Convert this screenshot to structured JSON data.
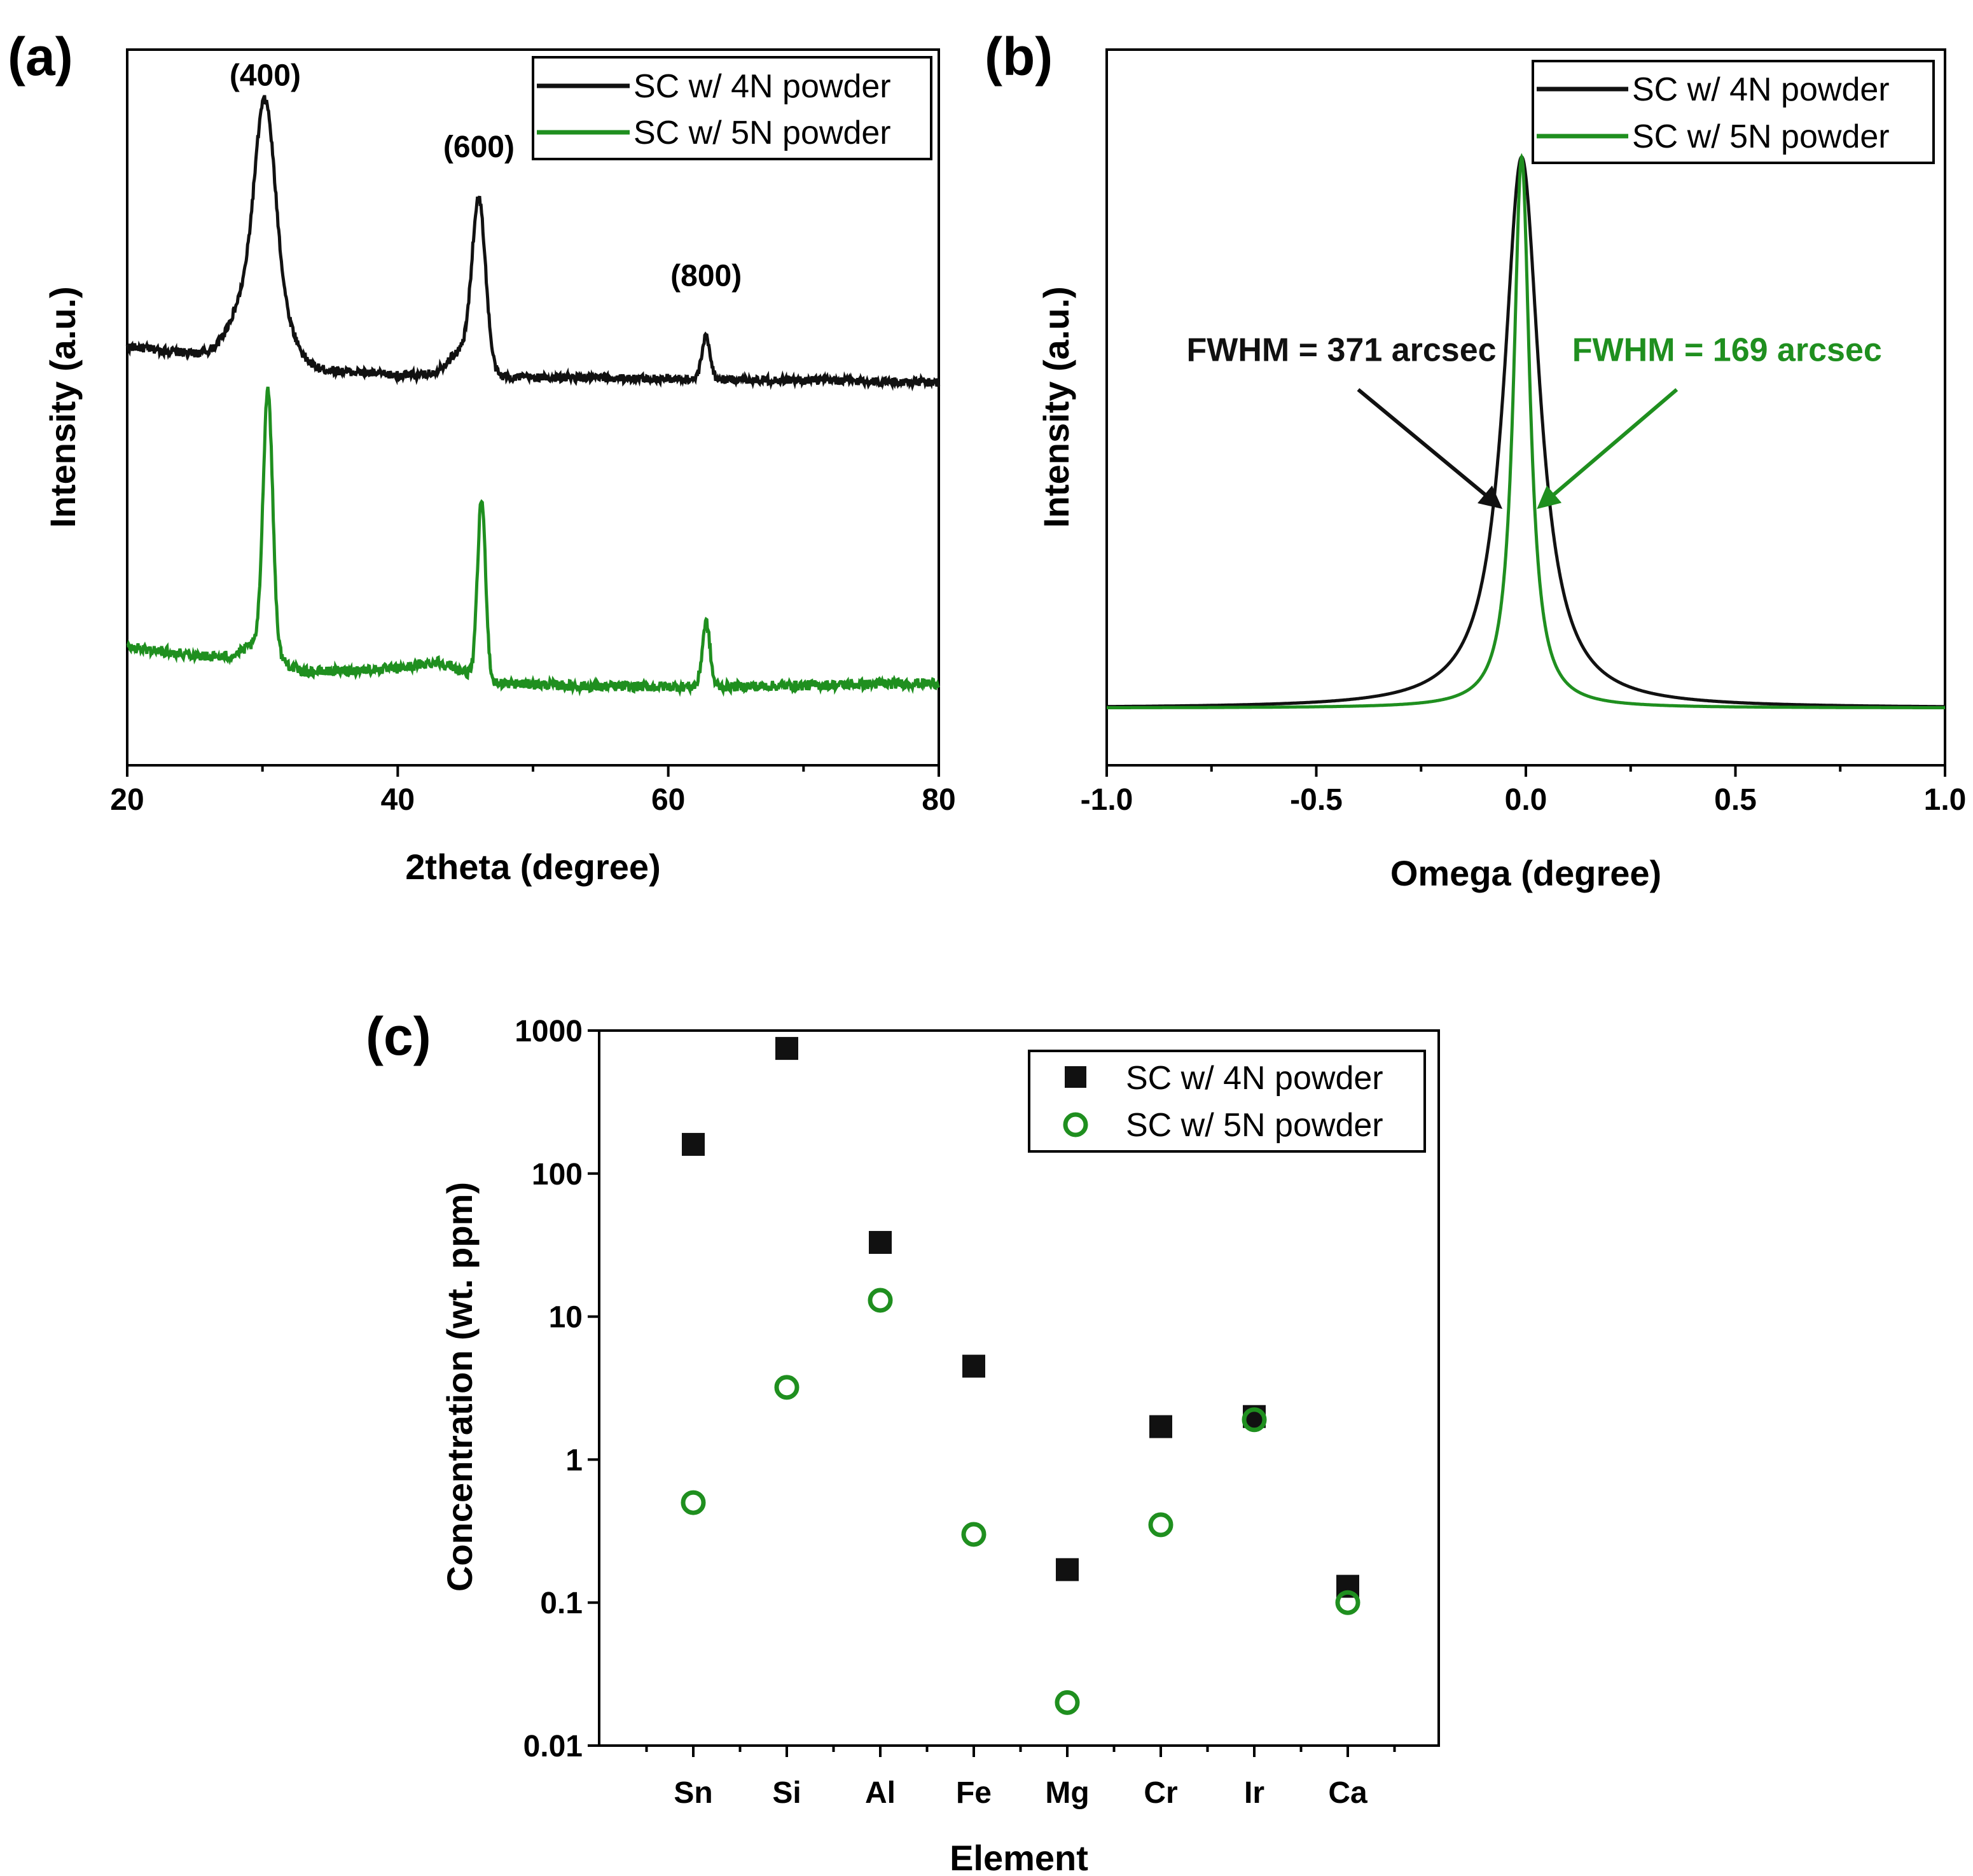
{
  "colors": {
    "black": "#111111",
    "green": "#1f8f1f",
    "blue": "#2b2bdb",
    "red": "#e02020"
  },
  "chart_data": [
    {
      "id": "a",
      "panel_label": "(a)",
      "type": "line",
      "title": "",
      "xlabel": "2theta (degree)",
      "ylabel": "Intensity (a.u.)",
      "xlim": [
        20,
        80
      ],
      "ylim": [
        0,
        100
      ],
      "xticks": [
        20,
        40,
        60,
        80
      ],
      "yticks_shown": false,
      "legend": {
        "position": "top-right",
        "entries": [
          "SC w/ 4N powder",
          "SC w/ 5N powder"
        ]
      },
      "peak_annotations": [
        {
          "text": "(400)",
          "x": 30.2,
          "y": 95
        },
        {
          "text": "(600)",
          "x": 46.0,
          "y": 85
        },
        {
          "text": "(800)",
          "x": 62.8,
          "y": 67
        }
      ],
      "series": [
        {
          "name": "SC w/ 4N powder",
          "color": "#111111",
          "baseline": [
            [
              20,
              58.5
            ],
            [
              27.5,
              57.0
            ],
            [
              33,
              55.5
            ],
            [
              40,
              54.5
            ],
            [
              50,
              54.2
            ],
            [
              60,
              54.0
            ],
            [
              70,
              53.8
            ],
            [
              80,
              53.5
            ]
          ],
          "peaks": [
            {
              "center": 30.2,
              "height": 29.0,
              "width": 0.75
            },
            {
              "center": 29.0,
              "height": 9.0,
              "width": 1.3
            },
            {
              "center": 31.6,
              "height": 5.0,
              "width": 1.0
            },
            {
              "center": 46.0,
              "height": 23.0,
              "width": 0.5
            },
            {
              "center": 44.8,
              "height": 3.5,
              "width": 1.1
            },
            {
              "center": 62.8,
              "height": 6.0,
              "width": 0.3
            }
          ],
          "noise": 0.6
        },
        {
          "name": "SC w/ 5N powder",
          "color": "#1f8f1f",
          "baseline": [
            [
              20,
              16.5
            ],
            [
              27,
              15.0
            ],
            [
              33,
              13.0
            ],
            [
              40,
              13.5
            ],
            [
              43,
              14.5
            ],
            [
              47,
              11.5
            ],
            [
              55,
              11.0
            ],
            [
              65,
              11.0
            ],
            [
              80,
              11.5
            ]
          ],
          "peaks": [
            {
              "center": 30.4,
              "height": 36.0,
              "width": 0.35
            },
            {
              "center": 29.9,
              "height": 3.0,
              "width": 1.2
            },
            {
              "center": 46.2,
              "height": 25.0,
              "width": 0.3
            },
            {
              "center": 62.8,
              "height": 9.0,
              "width": 0.28
            }
          ],
          "noise": 0.7
        }
      ]
    },
    {
      "id": "b",
      "panel_label": "(b)",
      "type": "line",
      "title": "",
      "xlabel": "Omega (degree)",
      "ylabel": "Intensity (a.u.)",
      "xlim": [
        -1.0,
        1.0
      ],
      "ylim": [
        0,
        100
      ],
      "xticks": [
        -1.0,
        -0.5,
        0.0,
        0.5,
        1.0
      ],
      "xtick_labels": [
        "-1.0",
        "-0.5",
        "0.0",
        "0.5",
        "1.0"
      ],
      "yticks_shown": false,
      "legend": {
        "position": "top-right",
        "entries": [
          "SC w/ 4N powder",
          "SC w/ 5N powder"
        ]
      },
      "annotations": [
        {
          "text": "FWHM = 371 arcsec",
          "color": "#111111",
          "series": "SC w/ 4N powder",
          "text_x": -0.44,
          "text_y": 56.5,
          "arrow_from": [
            -0.4,
            52.5
          ],
          "arrow_to": [
            -0.07,
            36.5
          ]
        },
        {
          "text": "FWHM = 169 arcsec",
          "color": "#1f8f1f",
          "series": "SC w/ 5N powder",
          "text_x": 0.48,
          "text_y": 56.5,
          "arrow_from": [
            0.36,
            52.5
          ],
          "arrow_to": [
            0.04,
            36.5
          ]
        }
      ],
      "series": [
        {
          "name": "SC w/ 4N powder",
          "color": "#111111",
          "shape": "lorentzian",
          "center": -0.01,
          "fwhm_deg": 0.103,
          "baseline": 8.0,
          "peak": 85.0
        },
        {
          "name": "SC w/ 5N powder",
          "color": "#1f8f1f",
          "shape": "lorentzian",
          "center": -0.01,
          "fwhm_deg": 0.047,
          "baseline": 8.0,
          "peak": 85.0
        }
      ]
    },
    {
      "id": "c",
      "panel_label": "(c)",
      "type": "scatter",
      "title": "",
      "xlabel": "Element",
      "ylabel": "Concentration (wt. ppm)",
      "yscale": "log",
      "ylim": [
        0.01,
        1000
      ],
      "yticks": [
        0.01,
        0.1,
        1,
        10,
        100,
        1000
      ],
      "ytick_labels": [
        "0.01",
        "0.1",
        "1",
        "10",
        "100",
        "1000"
      ],
      "categories": [
        "Sn",
        "Si",
        "Al",
        "Fe",
        "Mg",
        "Cr",
        "Ir",
        "Ca"
      ],
      "category_colors": [
        "#2b2bdb",
        "#2b2bdb",
        "#2b2bdb",
        "#e02020",
        "#e02020",
        "#2b2bdb",
        "#111111",
        "#e02020"
      ],
      "legend": {
        "position": "top-right",
        "entries": [
          "SC w/ 4N powder",
          "SC w/ 5N powder"
        ]
      },
      "series": [
        {
          "name": "SC w/ 4N powder",
          "marker": "filled-square",
          "color": "#111111",
          "values": [
            160,
            750,
            33,
            4.5,
            0.17,
            1.7,
            2.0,
            0.13
          ]
        },
        {
          "name": "SC w/ 5N powder",
          "marker": "open-circle",
          "color": "#1f8f1f",
          "values": [
            0.5,
            3.2,
            13,
            0.3,
            0.02,
            0.35,
            1.9,
            0.1
          ]
        }
      ]
    }
  ]
}
